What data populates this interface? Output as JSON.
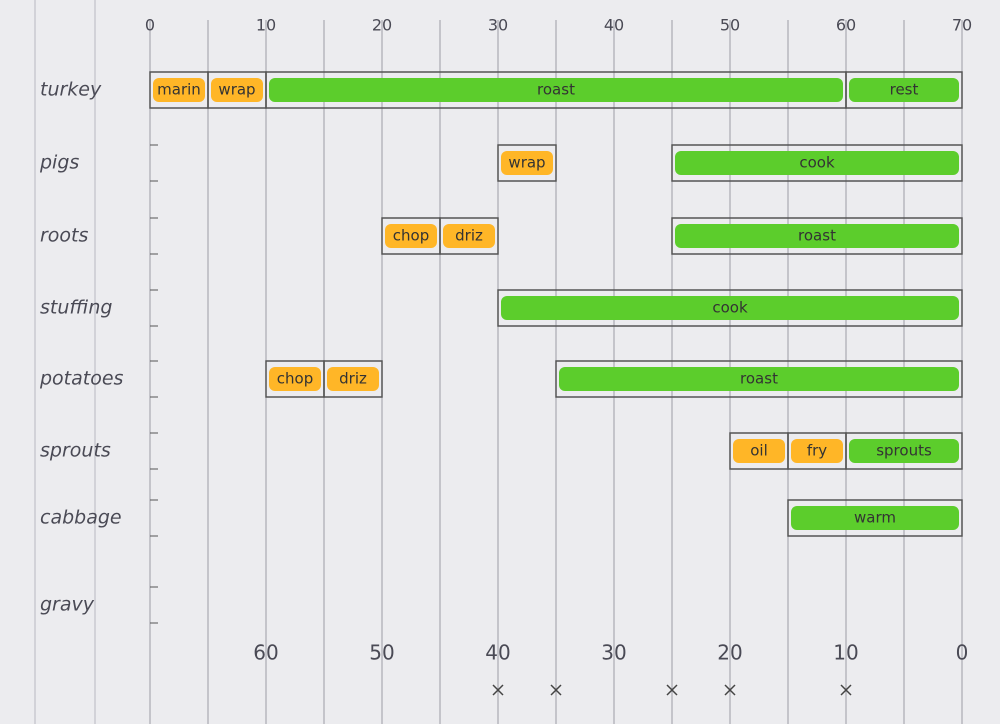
{
  "chart_data": {
    "type": "gantt",
    "rows": [
      "turkey",
      "pigs",
      "roots",
      "stuffing",
      "potatoes",
      "sprouts",
      "cabbage",
      "gravy"
    ],
    "tasks": [
      {
        "row": 0,
        "label": "marin",
        "start": 0,
        "end": 5,
        "color": "#ffb627"
      },
      {
        "row": 0,
        "label": "wrap",
        "start": 5,
        "end": 10,
        "color": "#ffb627"
      },
      {
        "row": 0,
        "label": "roast",
        "start": 10,
        "end": 60,
        "color": "#5ccd2c"
      },
      {
        "row": 0,
        "label": "rest",
        "start": 60,
        "end": 70,
        "color": "#5ccd2c"
      },
      {
        "row": 1,
        "label": "wrap",
        "start": 30,
        "end": 35,
        "color": "#ffb627"
      },
      {
        "row": 1,
        "label": "cook",
        "start": 45,
        "end": 70,
        "color": "#5ccd2c"
      },
      {
        "row": 2,
        "label": "chop",
        "start": 20,
        "end": 25,
        "color": "#ffb627"
      },
      {
        "row": 2,
        "label": "driz",
        "start": 25,
        "end": 30,
        "color": "#ffb627"
      },
      {
        "row": 2,
        "label": "roast",
        "start": 45,
        "end": 70,
        "color": "#5ccd2c"
      },
      {
        "row": 3,
        "label": "cook",
        "start": 30,
        "end": 70,
        "color": "#5ccd2c"
      },
      {
        "row": 4,
        "label": "chop",
        "start": 10,
        "end": 15,
        "color": "#ffb627"
      },
      {
        "row": 4,
        "label": "driz",
        "start": 15,
        "end": 20,
        "color": "#ffb627"
      },
      {
        "row": 4,
        "label": "roast",
        "start": 35,
        "end": 70,
        "color": "#5ccd2c"
      },
      {
        "row": 5,
        "label": "oil",
        "start": 50,
        "end": 55,
        "color": "#ffb627"
      },
      {
        "row": 5,
        "label": "fry",
        "start": 55,
        "end": 60,
        "color": "#ffb627"
      },
      {
        "row": 5,
        "label": "sprouts",
        "start": 60,
        "end": 70,
        "color": "#5ccd2c"
      },
      {
        "row": 6,
        "label": "warm",
        "start": 55,
        "end": 70,
        "color": "#5ccd2c"
      }
    ],
    "xlim": [
      0,
      70
    ],
    "xticks": [
      0,
      10,
      20,
      30,
      40,
      50,
      60,
      70
    ],
    "xgrid": [
      0,
      5,
      10,
      15,
      20,
      25,
      30,
      35,
      40,
      45,
      50,
      55,
      60,
      65,
      70
    ],
    "x2lim": [
      70,
      0
    ],
    "x2ticks": [
      60,
      50,
      40,
      30,
      20,
      10,
      0
    ],
    "x2markers": [
      40,
      35,
      25,
      20,
      10
    ]
  }
}
